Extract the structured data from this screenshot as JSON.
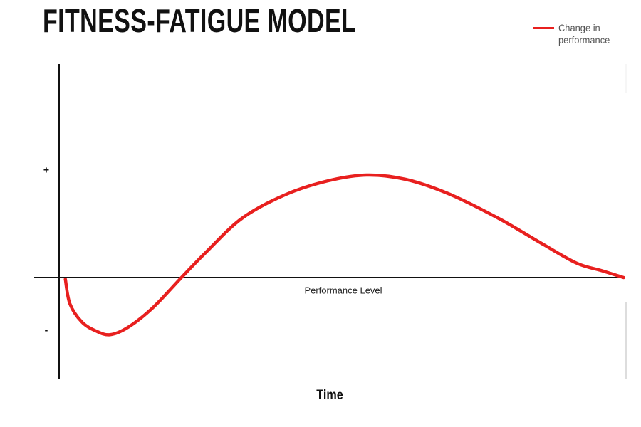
{
  "chart_data": {
    "type": "line",
    "title": "FITNESS-FATIGUE MODEL",
    "x_label": "Time",
    "annotation": "Performance Level",
    "xlim": [
      0,
      10
    ],
    "ylim": [
      -2,
      4
    ],
    "yticks": [
      {
        "value": 2,
        "label": "+"
      },
      {
        "value": -1,
        "label": "-"
      }
    ],
    "legend": "top-right",
    "series": [
      {
        "name": "Change in performance",
        "color": "#e8201f",
        "x": [
          0.11,
          0.19,
          0.4,
          0.65,
          0.9,
          1.22,
          1.66,
          2.16,
          2.6,
          3.23,
          3.99,
          4.74,
          5.43,
          6.12,
          6.88,
          7.76,
          8.52,
          9.14,
          9.58,
          9.97
        ],
        "values": [
          -0.03,
          -0.49,
          -0.83,
          -1.0,
          -1.07,
          -0.93,
          -0.56,
          0,
          0.48,
          1.11,
          1.55,
          1.81,
          1.92,
          1.84,
          1.57,
          1.11,
          0.64,
          0.27,
          0.13,
          0
        ]
      }
    ]
  }
}
